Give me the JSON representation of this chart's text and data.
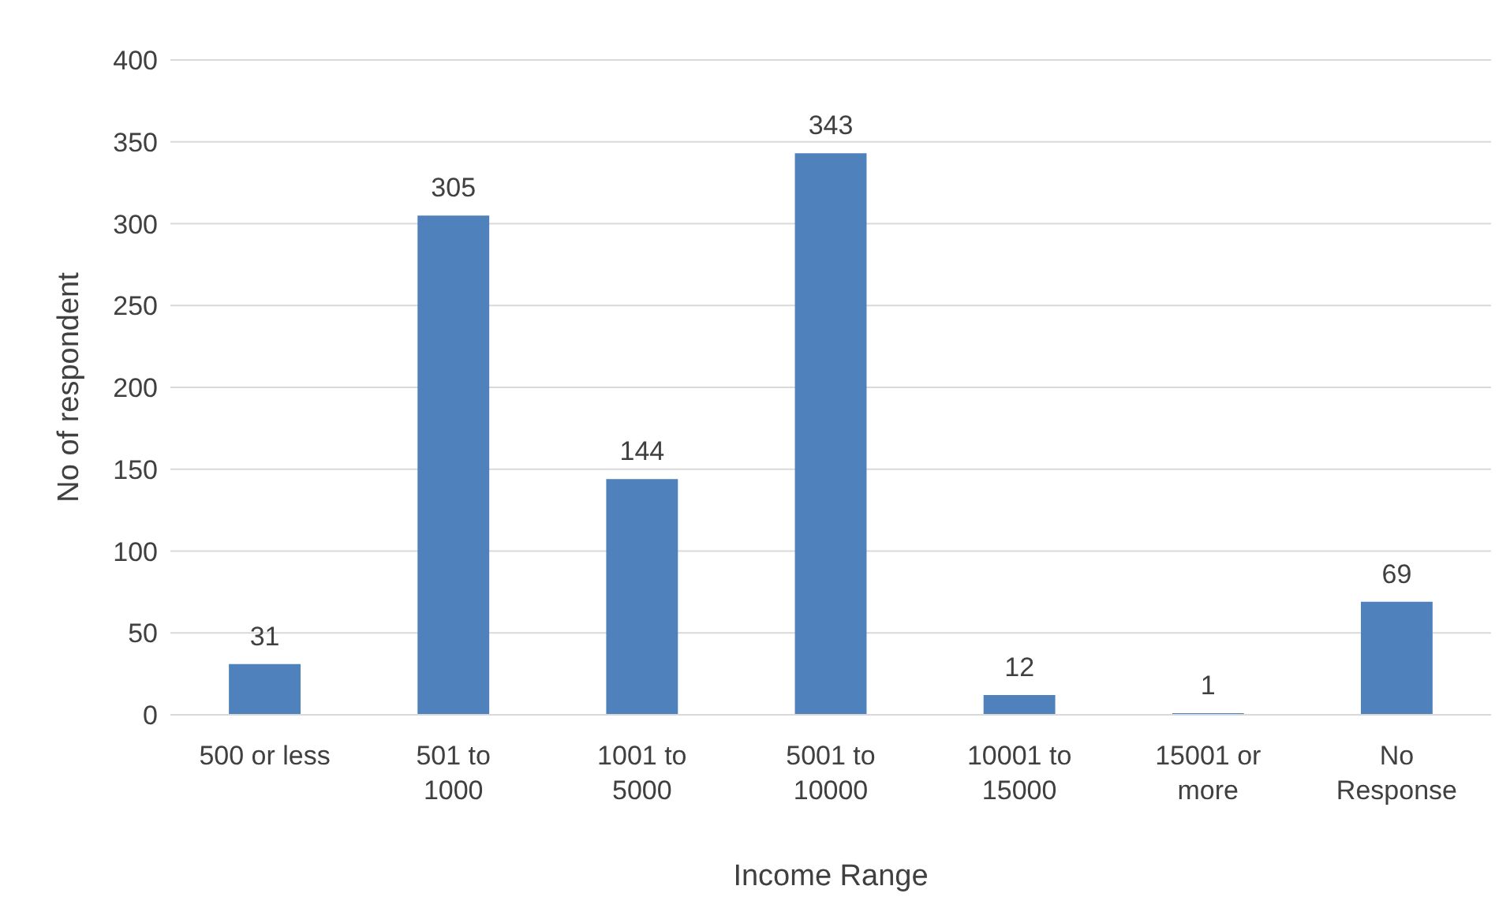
{
  "chart_data": {
    "type": "bar",
    "xlabel": "Income Range",
    "ylabel": "No of respondent",
    "categories": [
      "500 or less",
      "501 to 1000",
      "1001 to 5000",
      "5001 to 10000",
      "10001 to 15000",
      "15001 or more",
      "No Response"
    ],
    "values": [
      31,
      305,
      144,
      343,
      12,
      1,
      69
    ],
    "color": "#4f81bd",
    "ylim": [
      0,
      400
    ],
    "yticks": [
      0,
      50,
      100,
      150,
      200,
      250,
      300,
      350,
      400
    ],
    "grid": "y",
    "data_labels": true,
    "legend": false
  }
}
